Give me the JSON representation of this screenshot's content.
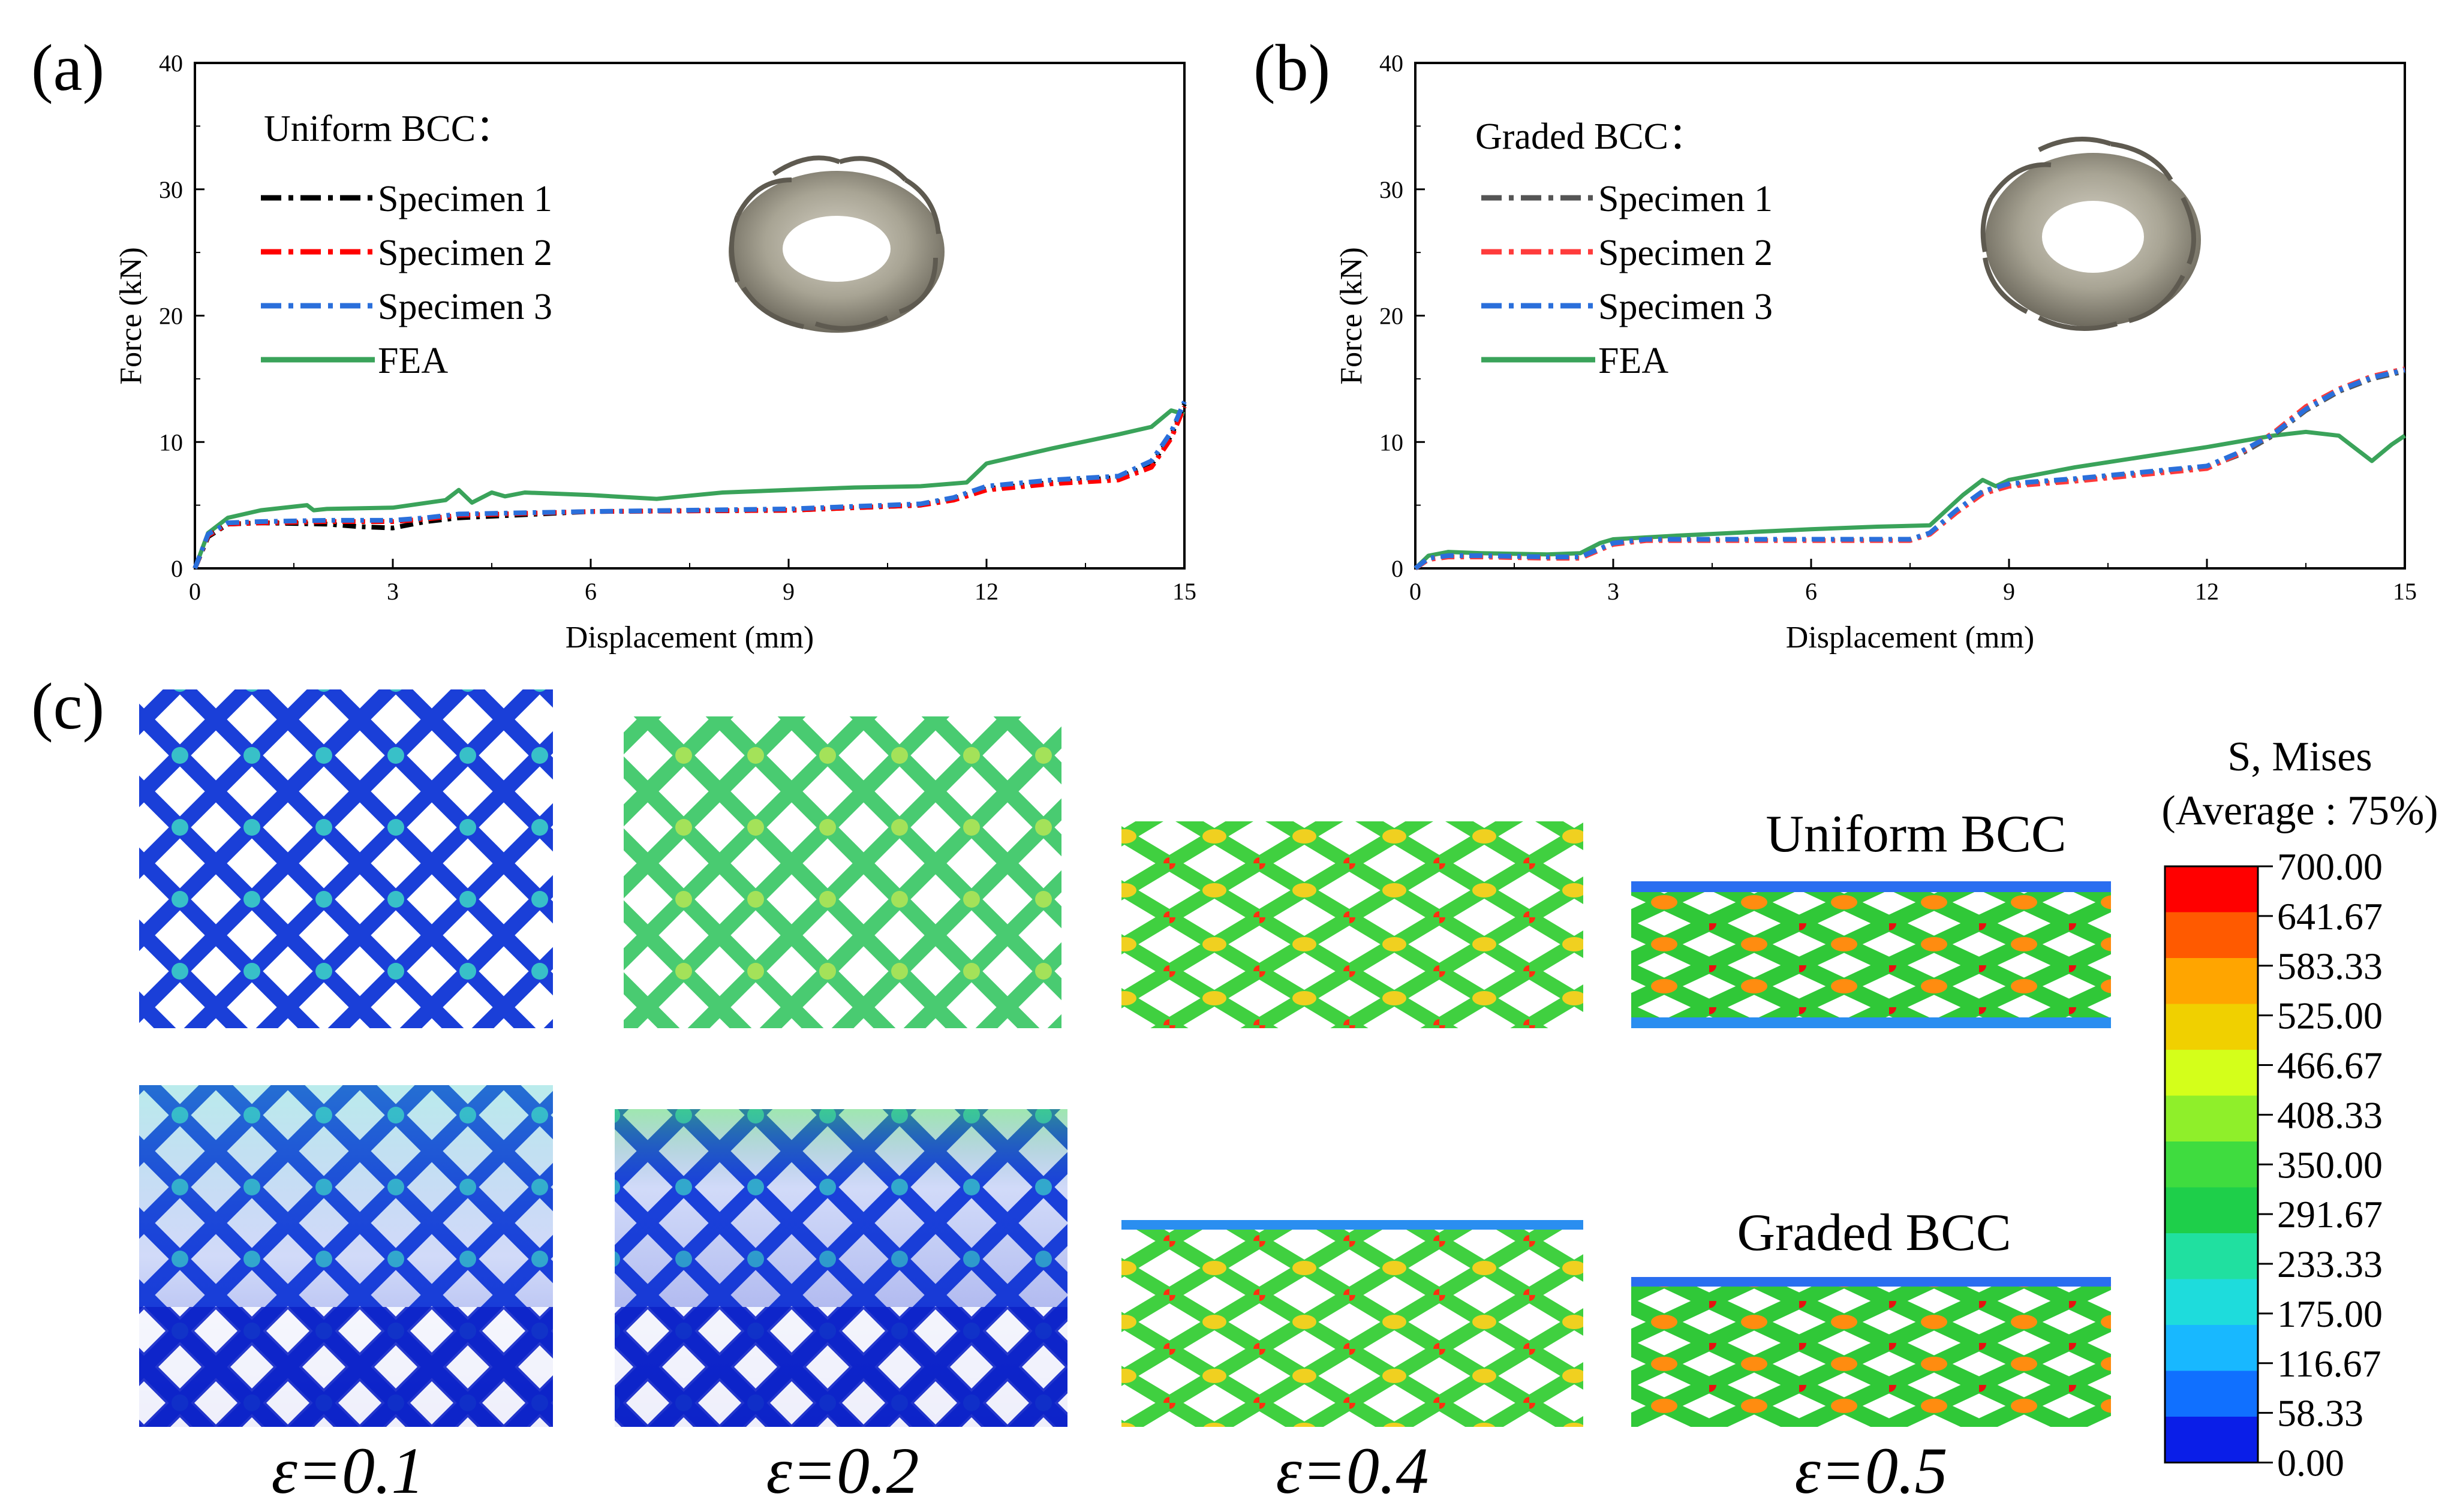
{
  "panels": [
    {
      "label": "(a)",
      "legend_title": "Uniform BCC：",
      "image_alt": "Uniform BCC ring specimen photo"
    },
    {
      "label": "(b)",
      "legend_title": "Graded BCC：",
      "image_alt": "Graded BCC ring specimen photo"
    }
  ],
  "chart_data": [
    {
      "type": "line",
      "title": "",
      "xlabel": "Displacement (mm)",
      "ylabel": "Force (kN)",
      "xlim": [
        0,
        15
      ],
      "ylim": [
        0,
        40
      ],
      "xticks": [
        "0",
        "3",
        "6",
        "9",
        "12",
        "15"
      ],
      "yticks": [
        "0",
        "10",
        "20",
        "30",
        "40"
      ],
      "legend_title": "Uniform BCC：",
      "series": [
        {
          "name": "Specimen 1",
          "style": "dashdot",
          "color": "#000000",
          "x": [
            0,
            0.2,
            0.5,
            1,
            2,
            2.5,
            3,
            3.5,
            4,
            6,
            9,
            11,
            11.5,
            12,
            13,
            14,
            14.5,
            14.8,
            15
          ],
          "y": [
            0,
            2.5,
            3.5,
            3.6,
            3.5,
            3.3,
            3.2,
            3.7,
            4,
            4.5,
            4.6,
            5,
            5.5,
            6.3,
            6.8,
            7.2,
            8.2,
            10.5,
            13
          ]
        },
        {
          "name": "Specimen 2",
          "style": "dashdot",
          "color": "#ff0000",
          "x": [
            0,
            0.2,
            0.5,
            1,
            2,
            3,
            3.5,
            4,
            6,
            9,
            11,
            11.5,
            12,
            13,
            14,
            14.5,
            14.8,
            15
          ],
          "y": [
            0,
            2.6,
            3.5,
            3.6,
            3.7,
            3.7,
            3.9,
            4.2,
            4.5,
            4.6,
            5,
            5.4,
            6.2,
            6.7,
            7.0,
            8.0,
            10.3,
            12.8
          ]
        },
        {
          "name": "Specimen 3",
          "style": "dashdot",
          "color": "#2a6fdb",
          "x": [
            0,
            0.2,
            0.5,
            1,
            2,
            3,
            3.5,
            4,
            6,
            9,
            11,
            11.5,
            12,
            13,
            14,
            14.5,
            14.8,
            15
          ],
          "y": [
            0,
            2.7,
            3.6,
            3.7,
            3.8,
            3.8,
            4.0,
            4.3,
            4.5,
            4.7,
            5.1,
            5.6,
            6.5,
            7.0,
            7.3,
            8.5,
            10.8,
            13.2
          ]
        },
        {
          "name": "FEA",
          "style": "solid",
          "color": "#3aa35a",
          "x": [
            0,
            0.2,
            0.5,
            1,
            1.7,
            1.8,
            2,
            3,
            3.8,
            4,
            4.2,
            4.5,
            4.7,
            5,
            6,
            7,
            8,
            9,
            10,
            11,
            11.7,
            12,
            13,
            14,
            14.5,
            14.8,
            15
          ],
          "y": [
            0,
            2.8,
            4.0,
            4.6,
            5.0,
            4.6,
            4.7,
            4.8,
            5.4,
            6.2,
            5.2,
            6.0,
            5.7,
            6.0,
            5.8,
            5.5,
            6.0,
            6.2,
            6.4,
            6.5,
            6.8,
            8.3,
            9.5,
            10.6,
            11.2,
            12.5,
            12.2
          ]
        }
      ]
    },
    {
      "type": "line",
      "title": "",
      "xlabel": "Displacement (mm)",
      "ylabel": "Force (kN)",
      "xlim": [
        0,
        15
      ],
      "ylim": [
        0,
        40
      ],
      "xticks": [
        "0",
        "3",
        "6",
        "9",
        "12",
        "15"
      ],
      "yticks": [
        "0",
        "10",
        "20",
        "30",
        "40"
      ],
      "legend_title": "Graded BCC：",
      "series": [
        {
          "name": "Specimen 1",
          "style": "dashdot",
          "color": "#555555",
          "x": [
            0,
            0.2,
            0.5,
            1,
            2,
            2.5,
            3,
            3.5,
            6,
            7.5,
            7.8,
            8.2,
            8.6,
            9,
            10,
            11,
            12,
            12.5,
            13,
            13.5,
            14,
            14.5,
            15
          ],
          "y": [
            0,
            0.8,
            1.0,
            1.0,
            0.9,
            0.9,
            2.0,
            2.3,
            2.3,
            2.3,
            2.8,
            4.5,
            6.0,
            6.6,
            7.0,
            7.5,
            8.0,
            9.0,
            10.5,
            12.5,
            14.0,
            15.0,
            15.6
          ]
        },
        {
          "name": "Specimen 2",
          "style": "dashdot",
          "color": "#ff3b3b",
          "x": [
            0,
            0.2,
            0.5,
            1,
            2,
            2.5,
            3,
            3.5,
            6,
            7.5,
            7.8,
            8.2,
            8.6,
            9,
            10,
            11,
            12,
            12.5,
            13,
            13.5,
            14,
            14.5,
            15
          ],
          "y": [
            0,
            0.7,
            0.9,
            0.9,
            0.8,
            0.8,
            1.9,
            2.2,
            2.2,
            2.2,
            2.7,
            4.4,
            5.9,
            6.5,
            6.9,
            7.4,
            7.9,
            9.1,
            10.7,
            12.8,
            14.2,
            15.2,
            15.8
          ]
        },
        {
          "name": "Specimen 3",
          "style": "dashdot",
          "color": "#2a6fdb",
          "x": [
            0,
            0.2,
            0.5,
            1,
            2,
            2.5,
            3,
            3.5,
            6,
            7.5,
            7.8,
            8.2,
            8.6,
            9,
            10,
            11,
            12,
            12.5,
            13,
            13.5,
            14,
            14.5,
            15
          ],
          "y": [
            0,
            0.8,
            1.0,
            1.0,
            0.9,
            0.9,
            2.0,
            2.3,
            2.3,
            2.3,
            2.8,
            4.6,
            6.1,
            6.7,
            7.1,
            7.6,
            8.1,
            9.2,
            10.6,
            12.6,
            14.1,
            15.1,
            15.7
          ]
        },
        {
          "name": "FEA",
          "style": "solid",
          "color": "#3aa35a",
          "x": [
            0,
            0.2,
            0.5,
            1,
            2,
            2.5,
            2.8,
            3,
            4,
            6,
            7,
            7.8,
            8.3,
            8.6,
            8.8,
            9,
            10,
            11,
            12,
            13,
            13.5,
            14,
            14.5,
            14.8,
            15
          ],
          "y": [
            0,
            1.0,
            1.3,
            1.2,
            1.1,
            1.2,
            2.0,
            2.3,
            2.6,
            3.1,
            3.3,
            3.4,
            5.8,
            7.0,
            6.5,
            7.0,
            8.0,
            8.8,
            9.6,
            10.5,
            10.8,
            10.5,
            8.5,
            9.8,
            10.5
          ]
        }
      ]
    }
  ],
  "panel_c": {
    "label": "(c)",
    "strain_labels": [
      "ε=0.1",
      "ε=0.2",
      "ε=0.4",
      "ε=0.5"
    ],
    "row_labels": [
      "Uniform BCC",
      "Graded BCC"
    ],
    "colorbar": {
      "title_line1": "S, Mises",
      "title_line2": "(Average : 75%)",
      "values": [
        "700.00",
        "641.67",
        "583.33",
        "525.00",
        "466.67",
        "408.33",
        "350.00",
        "291.67",
        "233.33",
        "175.00",
        "116.67",
        "58.33",
        "0.00"
      ],
      "colors": [
        "#ff0000",
        "#ff5a00",
        "#ffa500",
        "#f0d000",
        "#d4ff1a",
        "#8fef2a",
        "#3fdc3f",
        "#1ecf4a",
        "#20e0a0",
        "#1edcdc",
        "#18b8ff",
        "#1070ff",
        "#0a1ee8"
      ]
    }
  }
}
